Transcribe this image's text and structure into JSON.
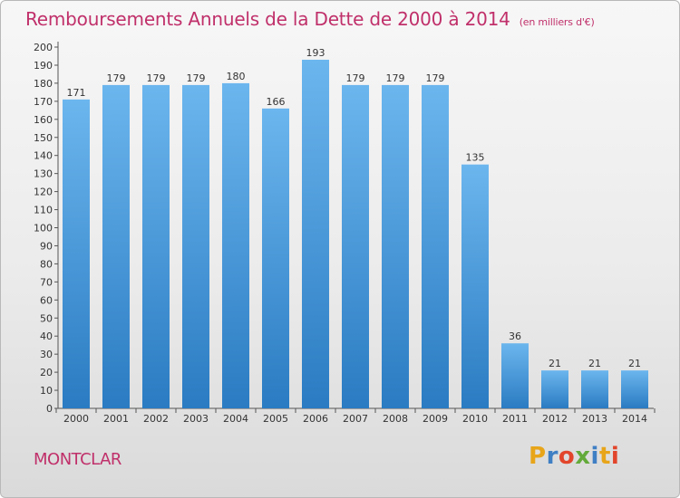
{
  "header": {
    "title": "Remboursements Annuels de la Dette de 2000 à 2014",
    "unit": "(en milliers d'€)"
  },
  "footer": {
    "commune": "MONTCLAR",
    "logo_text": "Proxiti"
  },
  "colors": {
    "title": "#c0306a",
    "bar_top": "#6cb6ee",
    "bar_bottom": "#2a7bc2",
    "logo_letters": [
      "#e8a51a",
      "#3f7fc4",
      "#e2452b",
      "#63aa3a",
      "#3f7fc4",
      "#e8a51a",
      "#e2452b"
    ]
  },
  "chart_data": {
    "type": "bar",
    "title": "Remboursements Annuels de la Dette de 2000 à 2014",
    "xlabel": "",
    "ylabel": "",
    "categories": [
      "2000",
      "2001",
      "2002",
      "2003",
      "2004",
      "2005",
      "2006",
      "2007",
      "2008",
      "2009",
      "2010",
      "2011",
      "2012",
      "2013",
      "2014"
    ],
    "values": [
      171,
      179,
      179,
      179,
      180,
      166,
      193,
      179,
      179,
      179,
      135,
      36,
      21,
      21,
      21
    ],
    "ylim": [
      0,
      200
    ],
    "yticks": [
      0,
      10,
      20,
      30,
      40,
      50,
      60,
      70,
      80,
      90,
      100,
      110,
      120,
      130,
      140,
      150,
      160,
      170,
      180,
      190,
      200
    ],
    "grid": false,
    "legend": "none"
  }
}
